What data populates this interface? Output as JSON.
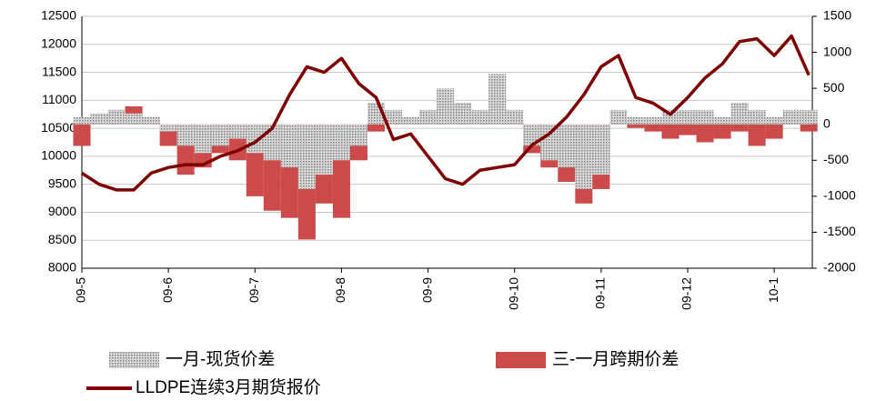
{
  "chart_data": {
    "type": "combo",
    "x": [
      0,
      0.2,
      0.4,
      0.6,
      0.8,
      1.0,
      1.2,
      1.4,
      1.6,
      1.8,
      2.0,
      2.2,
      2.4,
      2.6,
      2.8,
      3.0,
      3.2,
      3.4,
      3.6,
      3.8,
      4.0,
      4.2,
      4.4,
      4.6,
      4.8,
      5.0,
      5.2,
      5.4,
      5.6,
      5.8,
      6.0,
      6.2,
      6.4,
      6.6,
      6.8,
      7.0,
      7.2,
      7.4,
      7.6,
      7.8,
      8.0,
      8.2,
      8.4
    ],
    "xlim": [
      0,
      8.44
    ],
    "xticks": [
      {
        "value": 0,
        "label": "09-5"
      },
      {
        "value": 1,
        "label": "09-6"
      },
      {
        "value": 2,
        "label": "09-7"
      },
      {
        "value": 3,
        "label": "09-8"
      },
      {
        "value": 4,
        "label": "09-9"
      },
      {
        "value": 5,
        "label": "09-10"
      },
      {
        "value": 6,
        "label": "09-11"
      },
      {
        "value": 7,
        "label": "09-12"
      },
      {
        "value": 8,
        "label": "10-1"
      }
    ],
    "ylim": [
      8000,
      12500
    ],
    "yticks": [
      8000,
      8500,
      9000,
      9500,
      10000,
      10500,
      11000,
      11500,
      12000,
      12500
    ],
    "y2lim": [
      -2000,
      1500
    ],
    "y2ticks": [
      -2000,
      -1500,
      -1000,
      -500,
      0,
      500,
      1000,
      1500
    ],
    "grid": true,
    "series": [
      {
        "name": "三-一月跨期价差",
        "type": "bar",
        "axis": "y2",
        "color": "#cc4a4a",
        "values": [
          -300,
          150,
          200,
          250,
          100,
          -300,
          -700,
          -600,
          -400,
          -500,
          -1000,
          -1200,
          -1300,
          -1600,
          -1100,
          -1300,
          -500,
          -100,
          100,
          50,
          100,
          200,
          100,
          100,
          200,
          50,
          -400,
          -600,
          -800,
          -1100,
          -900,
          50,
          -50,
          -100,
          -200,
          -150,
          -250,
          -200,
          -100,
          -300,
          -200,
          100,
          -100
        ]
      },
      {
        "name": "一月-现货价差",
        "type": "bar",
        "axis": "y2",
        "color": "#a8a8a8",
        "values": [
          100,
          150,
          200,
          150,
          100,
          -100,
          -300,
          -400,
          -300,
          -200,
          -400,
          -500,
          -600,
          -900,
          -700,
          -500,
          -300,
          300,
          200,
          100,
          200,
          500,
          300,
          200,
          700,
          200,
          -300,
          -500,
          -600,
          -900,
          -700,
          200,
          100,
          100,
          200,
          200,
          200,
          100,
          300,
          200,
          100,
          200,
          200
        ]
      },
      {
        "name": "LLDPE连续3月期货报价",
        "type": "line",
        "color": "#7f0000",
        "values": [
          9700,
          9500,
          9400,
          9400,
          9700,
          9800,
          9850,
          9850,
          10000,
          10100,
          10250,
          10500,
          11100,
          11600,
          11500,
          11750,
          11300,
          11050,
          10300,
          10400,
          10000,
          9600,
          9500,
          9750,
          9800,
          9850,
          10200,
          10400,
          10700,
          11100,
          11600,
          11800,
          11050,
          10950,
          10750,
          11050,
          11400,
          11650,
          12050,
          12100,
          11800,
          12150,
          11450
        ]
      }
    ]
  }
}
